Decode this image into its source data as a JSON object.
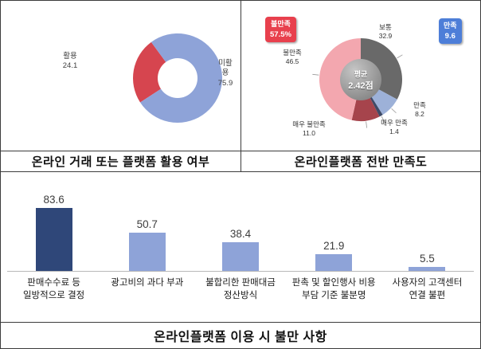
{
  "chart_data": [
    {
      "type": "pie",
      "donut": true,
      "title": "온라인 거래 또는 플랫폼 활용 여부",
      "start_angle": 237,
      "legend_position": "none",
      "segments": [
        {
          "label": "활용",
          "value": 24.1,
          "display": "24.1",
          "color": "#d6454f"
        },
        {
          "label": "미활용",
          "value": 75.9,
          "display": "75.9",
          "color": "#8ea3d8"
        }
      ]
    },
    {
      "type": "pie",
      "donut": true,
      "title": "온라인플랫폼 전반 만족도",
      "start_angle": 0,
      "legend_position": "none",
      "center_label": {
        "line1": "평균",
        "line2": "2.42점"
      },
      "segments": [
        {
          "label": "보통",
          "value": 32.9,
          "display": "32.9",
          "color": "#696969"
        },
        {
          "label": "만족",
          "value": 8.2,
          "display": "8.2",
          "color": "#9db1d8"
        },
        {
          "label": "매우 만족",
          "value": 1.4,
          "display": "1.4",
          "color": "#3e4a66"
        },
        {
          "label": "매우 불만족",
          "value": 11.0,
          "display": "11.0",
          "color": "#a6444c"
        },
        {
          "label": "불만족",
          "value": 46.5,
          "display": "46.5",
          "color": "#f3a7af"
        }
      ],
      "badges": [
        {
          "label": "불만족",
          "value": "57.5%",
          "color": "#e8404d"
        },
        {
          "label": "만족",
          "value": "9.6",
          "color": "#4d7ed8"
        }
      ]
    },
    {
      "type": "bar",
      "title": "온라인플랫폼 이용 시 불만 사항",
      "categories": [
        "판매수수료 등\n일방적으로 결정",
        "광고비의 과다 부과",
        "불합리한 판매대금\n정산방식",
        "판촉 및 할인행사 비용\n부담 기준 불분명",
        "사용자의 고객센터\n연결 불편"
      ],
      "values": [
        83.6,
        50.7,
        38.4,
        21.9,
        5.5
      ],
      "value_labels": [
        "83.6",
        "50.7",
        "38.4",
        "21.9",
        "5.5"
      ],
      "bar_colors": [
        "#2f4779",
        "#8ea3d8",
        "#8ea3d8",
        "#8ea3d8",
        "#8ea3d8"
      ],
      "ylim": [
        0,
        90
      ],
      "grid": false,
      "axis_color": "#b9b9b9"
    }
  ]
}
